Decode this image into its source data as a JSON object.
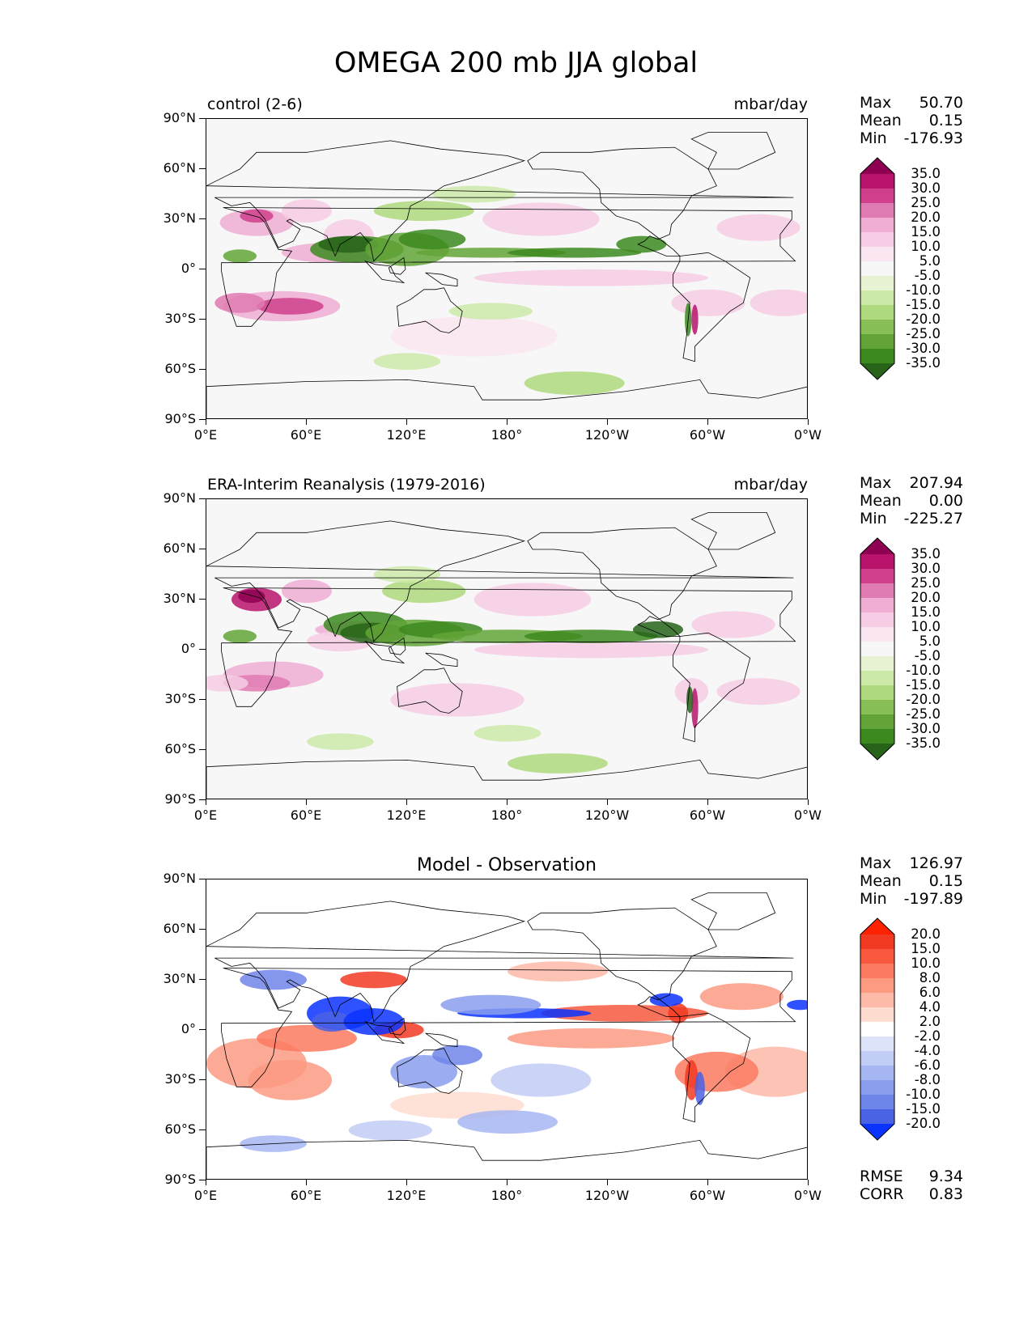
{
  "title": "OMEGA 200 mb JJA global",
  "panels": [
    {
      "left_title": "control (2-6)",
      "right_title": "mbar/day",
      "center_title": "",
      "stats": {
        "max_label": "Max",
        "max": "50.70",
        "mean_label": "Mean",
        "mean": "0.15",
        "min_label": "Min",
        "min": "-176.93"
      },
      "colormap": "PiYG_r",
      "levels": [
        "35.0",
        "30.0",
        "25.0",
        "20.0",
        "15.0",
        "10.0",
        "5.0",
        "-5.0",
        "-10.0",
        "-15.0",
        "-20.0",
        "-25.0",
        "-30.0",
        "-35.0"
      ],
      "colors": [
        "#8e0152",
        "#b8136b",
        "#cf3f8c",
        "#e07ab3",
        "#f0aed4",
        "#f6cde4",
        "#fae6f0",
        "#f7f7f7",
        "#e7f3d3",
        "#cde9a8",
        "#aed97c",
        "#88c057",
        "#63a438",
        "#3c8a1f",
        "#276419"
      ]
    },
    {
      "left_title": "ERA-Interim Reanalysis (1979-2016)",
      "right_title": "mbar/day",
      "center_title": "",
      "stats": {
        "max_label": "Max",
        "max": "207.94",
        "mean_label": "Mean",
        "mean": "0.00",
        "min_label": "Min",
        "min": "-225.27"
      },
      "colormap": "PiYG_r",
      "levels": [
        "35.0",
        "30.0",
        "25.0",
        "20.0",
        "15.0",
        "10.0",
        "5.0",
        "-5.0",
        "-10.0",
        "-15.0",
        "-20.0",
        "-25.0",
        "-30.0",
        "-35.0"
      ],
      "colors": [
        "#8e0152",
        "#b8136b",
        "#cf3f8c",
        "#e07ab3",
        "#f0aed4",
        "#f6cde4",
        "#fae6f0",
        "#f7f7f7",
        "#e7f3d3",
        "#cde9a8",
        "#aed97c",
        "#88c057",
        "#63a438",
        "#3c8a1f",
        "#276419"
      ]
    },
    {
      "left_title": "",
      "right_title": "",
      "center_title": "Model - Observation",
      "stats": {
        "max_label": "Max",
        "max": "126.97",
        "mean_label": "Mean",
        "mean": "0.15",
        "min_label": "Min",
        "min": "-197.89"
      },
      "colormap": "diverge",
      "levels": [
        "20.0",
        "15.0",
        "10.0",
        "8.0",
        "6.0",
        "4.0",
        "2.0",
        "-2.0",
        "-4.0",
        "-6.0",
        "-8.0",
        "-10.0",
        "-15.0",
        "-20.0"
      ],
      "colors": [
        "#ff2200",
        "#f23a22",
        "#f7583e",
        "#fb7a60",
        "#fc9a82",
        "#fdbaa8",
        "#fedcd0",
        "#ffffff",
        "#dde4fa",
        "#c2cdf6",
        "#a6b6f2",
        "#8a9eee",
        "#6e85ea",
        "#4a62e4",
        "#0a33ff"
      ],
      "metrics": {
        "rmse_label": "RMSE",
        "rmse": "9.34",
        "corr_label": "CORR",
        "corr": "0.83"
      }
    }
  ],
  "chart_data": {
    "type": "heatmap",
    "title": "OMEGA 200 mb JJA global",
    "xlabel": "",
    "ylabel": "",
    "xlim": [
      0,
      360
    ],
    "ylim": [
      -90,
      90
    ],
    "x_ticks": [
      "0°E",
      "60°E",
      "120°E",
      "180°",
      "120°W",
      "60°W",
      "0°W"
    ],
    "y_ticks": [
      "90°N",
      "60°N",
      "30°N",
      "0°",
      "30°S",
      "60°S",
      "90°S"
    ],
    "units": "mbar/day",
    "series": [
      {
        "name": "control (2-6)",
        "max": 50.7,
        "mean": 0.15,
        "min": -176.93
      },
      {
        "name": "ERA-Interim Reanalysis (1979-2016)",
        "max": 207.94,
        "mean": 0.0,
        "min": -225.27
      },
      {
        "name": "Model - Observation",
        "max": 126.97,
        "mean": 0.15,
        "min": -197.89,
        "rmse": 9.34,
        "corr": 0.83
      }
    ]
  }
}
